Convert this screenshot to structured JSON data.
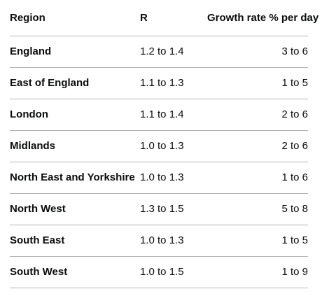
{
  "table": {
    "headers": {
      "region": "Region",
      "r": "R",
      "growth": "Growth rate % per day"
    },
    "rows": [
      {
        "region": "England",
        "r": "1.2 to 1.4",
        "growth": "3 to 6"
      },
      {
        "region": "East of England",
        "r": "1.1 to 1.3",
        "growth": "1 to 5"
      },
      {
        "region": "London",
        "r": "1.1 to 1.4",
        "growth": "2 to 6"
      },
      {
        "region": "Midlands",
        "r": "1.0 to 1.3",
        "growth": "2 to 6"
      },
      {
        "region": "North East and Yorkshire",
        "r": "1.0 to 1.3",
        "growth": "1 to 6"
      },
      {
        "region": "North West",
        "r": "1.3 to 1.5",
        "growth": "5 to 8"
      },
      {
        "region": "South East",
        "r": "1.0 to 1.3",
        "growth": "1 to 5"
      },
      {
        "region": "South West",
        "r": "1.0 to 1.5",
        "growth": "1 to 9"
      }
    ]
  },
  "colors": {
    "text": "#0b0c0c",
    "border": "#b1b4b6",
    "background": "#ffffff"
  }
}
